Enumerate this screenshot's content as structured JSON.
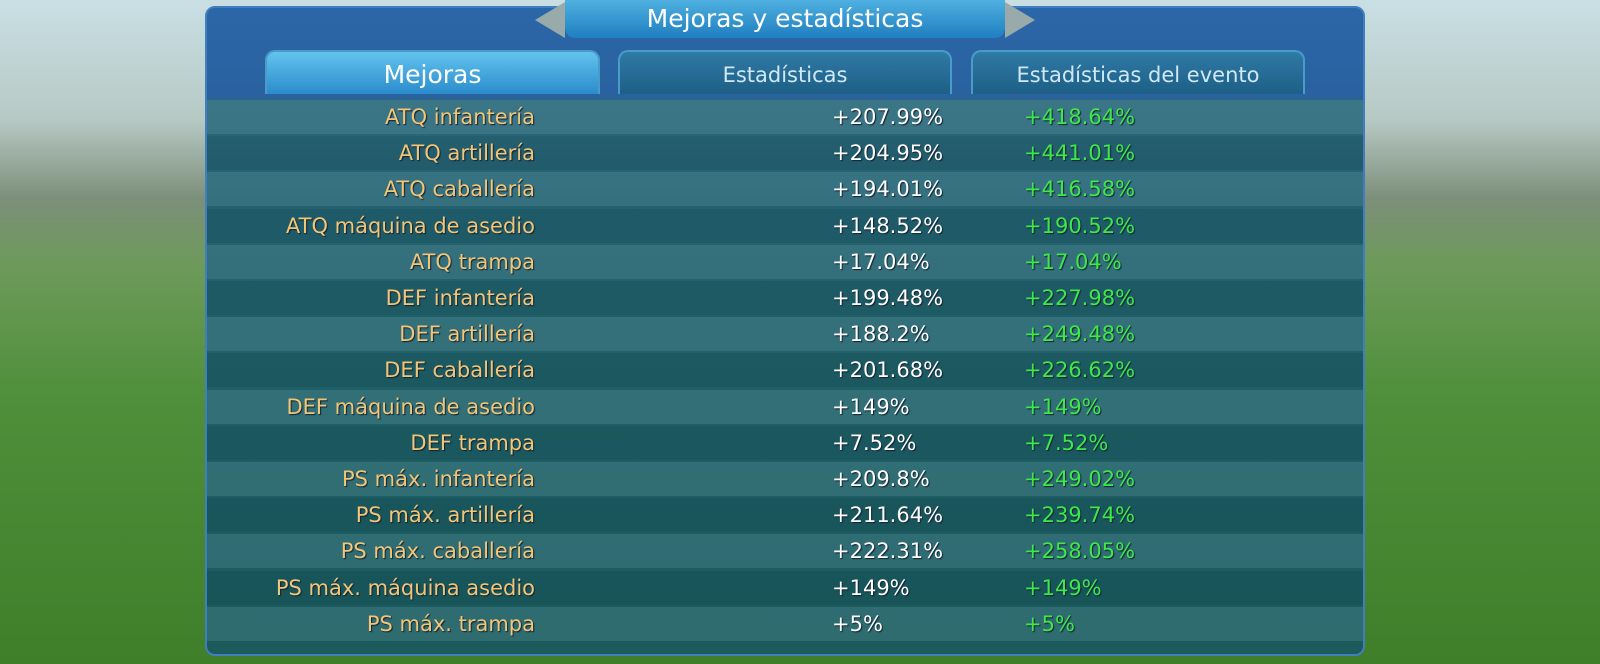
{
  "header": {
    "title": "Mejoras y estadísticas"
  },
  "tabs": [
    "Mejoras",
    "Estadísticas",
    "Estadísticas del evento"
  ],
  "table": {
    "rows": [
      [
        "ATQ infantería",
        "+207.99%",
        "+418.64%"
      ],
      [
        "ATQ artillería",
        "+204.95%",
        "+441.01%"
      ],
      [
        "ATQ caballería",
        "+194.01%",
        "+416.58%"
      ],
      [
        "ATQ máquina de asedio",
        "+148.52%",
        "+190.52%"
      ],
      [
        "ATQ trampa",
        "+17.04%",
        "+17.04%"
      ],
      [
        "DEF infantería",
        "+199.48%",
        "+227.98%"
      ],
      [
        "DEF artillería",
        "+188.2%",
        "+249.48%"
      ],
      [
        "DEF caballería",
        "+201.68%",
        "+226.62%"
      ],
      [
        "DEF máquina de asedio",
        "+149%",
        "+149%"
      ],
      [
        "DEF trampa",
        "+7.52%",
        "+7.52%"
      ],
      [
        "PS máx. infantería",
        "+209.8%",
        "+249.02%"
      ],
      [
        "PS máx. artillería",
        "+211.64%",
        "+239.74%"
      ],
      [
        "PS máx. caballería",
        "+222.31%",
        "+258.05%"
      ],
      [
        "PS máx. máquina asedio",
        "+149%",
        "+149%"
      ],
      [
        "PS máx. trampa",
        "+5%",
        "+5%"
      ]
    ]
  }
}
